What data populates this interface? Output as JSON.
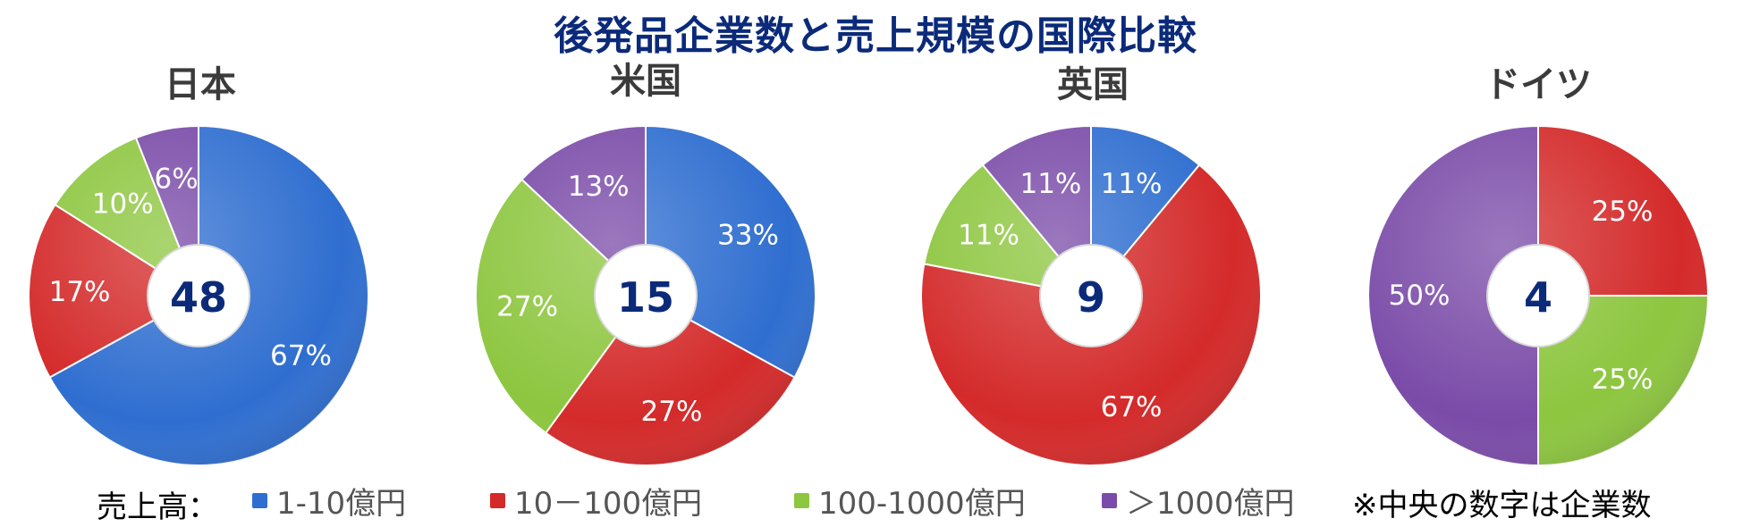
{
  "title": "後発品企業数と売上規模の国際比較",
  "colors": {
    "blue": "#2f6ed0",
    "red": "#d42a2a",
    "green": "#8dc63f",
    "purple": "#7a4ba8",
    "title": "#0b2a7a"
  },
  "legend": {
    "prefix": "売上高：",
    "items": [
      {
        "label": "1-10億円",
        "color": "#2f6ed0"
      },
      {
        "label": "10－100億円",
        "color": "#d42a2a"
      },
      {
        "label": "100-1000億円",
        "color": "#8dc63f"
      },
      {
        "label": "＞1000億円",
        "color": "#7a4ba8"
      }
    ]
  },
  "footnote": "※中央の数字は企業数",
  "chart_data": [
    {
      "type": "pie",
      "title": "日本",
      "center_value": "48",
      "slices": [
        {
          "category": "1-10億円",
          "value": 67,
          "label": "67%"
        },
        {
          "category": "10－100億円",
          "value": 17,
          "label": "17%"
        },
        {
          "category": "100-1000億円",
          "value": 10,
          "label": "10%"
        },
        {
          "category": "＞1000億円",
          "value": 6,
          "label": "6%"
        }
      ]
    },
    {
      "type": "pie",
      "title": "米国",
      "center_value": "15",
      "slices": [
        {
          "category": "1-10億円",
          "value": 33,
          "label": "33%"
        },
        {
          "category": "10－100億円",
          "value": 27,
          "label": "27%"
        },
        {
          "category": "100-1000億円",
          "value": 27,
          "label": "27%"
        },
        {
          "category": "＞1000億円",
          "value": 13,
          "label": "13%"
        }
      ]
    },
    {
      "type": "pie",
      "title": "英国",
      "center_value": "9",
      "slices": [
        {
          "category": "1-10億円",
          "value": 11,
          "label": "11%"
        },
        {
          "category": "10－100億円",
          "value": 67,
          "label": "67%"
        },
        {
          "category": "100-1000億円",
          "value": 11,
          "label": "11%"
        },
        {
          "category": "＞1000億円",
          "value": 11,
          "label": "11%"
        }
      ]
    },
    {
      "type": "pie",
      "title": "ドイツ",
      "center_value": "4",
      "slices": [
        {
          "category": "1-10億円",
          "value": 0,
          "label": ""
        },
        {
          "category": "10－100億円",
          "value": 25,
          "label": "25%"
        },
        {
          "category": "100-1000億円",
          "value": 25,
          "label": "25%"
        },
        {
          "category": "＞1000億円",
          "value": 50,
          "label": "50%"
        }
      ]
    }
  ]
}
